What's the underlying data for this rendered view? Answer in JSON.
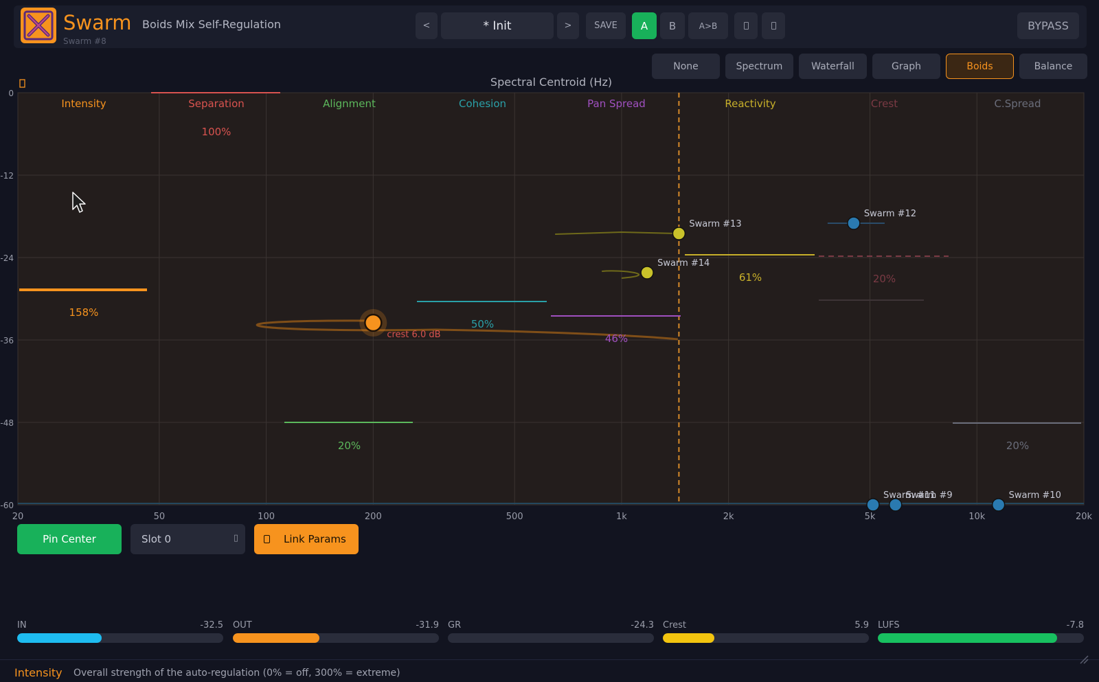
{
  "header": {
    "app_name": "Swarm",
    "app_subtitle": "Swarm #8",
    "page_title": "Boids Mix Self-Regulation",
    "prev_label": "<",
    "preset_name": "* Init",
    "next_label": ">",
    "save_label": "SAVE",
    "a_label": "A",
    "b_label": "B",
    "ab_label": "A>B",
    "undo_label": "",
    "redo_label": "",
    "bypass_label": "BYPASS"
  },
  "viz_tabs": [
    {
      "label": "None",
      "active": false
    },
    {
      "label": "Spectrum",
      "active": false
    },
    {
      "label": "Waterfall",
      "active": false
    },
    {
      "label": "Graph",
      "active": false
    },
    {
      "label": "Boids",
      "active": true
    },
    {
      "label": "Balance",
      "active": false
    }
  ],
  "chart_data": {
    "type": "scatter",
    "title": "Spectral Centroid (Hz)",
    "x_scale": "log",
    "xlim": [
      20,
      20000
    ],
    "ylim": [
      -60,
      0
    ],
    "x_ticks": [
      {
        "value": 20,
        "label": "20"
      },
      {
        "value": 50,
        "label": "50"
      },
      {
        "value": 100,
        "label": "100"
      },
      {
        "value": 200,
        "label": "200"
      },
      {
        "value": 500,
        "label": "500"
      },
      {
        "value": 1000,
        "label": "1k"
      },
      {
        "value": 2000,
        "label": "2k"
      },
      {
        "value": 5000,
        "label": "5k"
      },
      {
        "value": 10000,
        "label": "10k"
      },
      {
        "value": 20000,
        "label": "20k"
      }
    ],
    "y_ticks": [
      {
        "value": 0,
        "label": "0"
      },
      {
        "value": -12,
        "label": "-12"
      },
      {
        "value": -24,
        "label": "-24"
      },
      {
        "value": -36,
        "label": "-36"
      },
      {
        "value": -48,
        "label": "-48"
      },
      {
        "value": -60,
        "label": "-60"
      }
    ],
    "center_hz": 1450,
    "parameters": [
      {
        "name": "Intensity",
        "value": 158,
        "label": "158%",
        "color": "#f7931e"
      },
      {
        "name": "Separation",
        "value": 100,
        "label": "100%",
        "color": "#d9534f"
      },
      {
        "name": "Alignment",
        "value": 20,
        "label": "20%",
        "color": "#5cb85c"
      },
      {
        "name": "Cohesion",
        "value": 50,
        "label": "50%",
        "color": "#2aa0a8"
      },
      {
        "name": "Pan Spread",
        "value": 46,
        "label": "46%",
        "color": "#a050c0"
      },
      {
        "name": "Reactivity",
        "value": 61,
        "label": "61%",
        "color": "#c8b02a"
      },
      {
        "name": "Crest",
        "value": 20,
        "label": "20%",
        "color": "#7a3a44"
      },
      {
        "name": "C.Spread",
        "value": 20,
        "label": "20%",
        "color": "#6a6d7a"
      }
    ],
    "points": [
      {
        "name": "",
        "x": 200,
        "y": -33.5,
        "color": "#f7931e",
        "label": "crest 6.0 dB",
        "self": true
      },
      {
        "name": "Swarm #13",
        "x": 1450,
        "y": -20.5,
        "color": "#c9c22a"
      },
      {
        "name": "Swarm #14",
        "x": 1180,
        "y": -26.2,
        "color": "#c9c22a"
      },
      {
        "name": "Swarm #12",
        "x": 4500,
        "y": -19.0,
        "color": "#2a7ab0"
      },
      {
        "name": "Swarm #11",
        "x": 5100,
        "y": -60,
        "color": "#2a7ab0"
      },
      {
        "name": "Swarm #9",
        "x": 5900,
        "y": -60,
        "color": "#2a7ab0"
      },
      {
        "name": "Swarm #10",
        "x": 11500,
        "y": -60,
        "color": "#2a7ab0"
      }
    ]
  },
  "controls": {
    "pin_center": "Pin Center",
    "slot": "Slot 0",
    "link_params": "Link Params"
  },
  "meters": [
    {
      "name": "IN",
      "value": "-32.5",
      "fill": 0.41,
      "color": "#1ebcf0"
    },
    {
      "name": "OUT",
      "value": "-31.9",
      "fill": 0.42,
      "color": "#f7931e"
    },
    {
      "name": "GR",
      "value": "-24.3",
      "fill": 0.0,
      "color": "#7a7d8a"
    },
    {
      "name": "Crest",
      "value": "5.9",
      "fill": 0.25,
      "color": "#f2c40f"
    },
    {
      "name": "LUFS",
      "value": "-7.8",
      "fill": 0.87,
      "color": "#18c060"
    }
  ],
  "status": {
    "param_name": "Intensity",
    "description": "Overall strength of the auto-regulation (0% = off, 300% = extreme)"
  },
  "colors": {
    "background": "#121420",
    "plot_background": "#231d1c",
    "accent": "#f7931e",
    "green": "#18b15a"
  }
}
